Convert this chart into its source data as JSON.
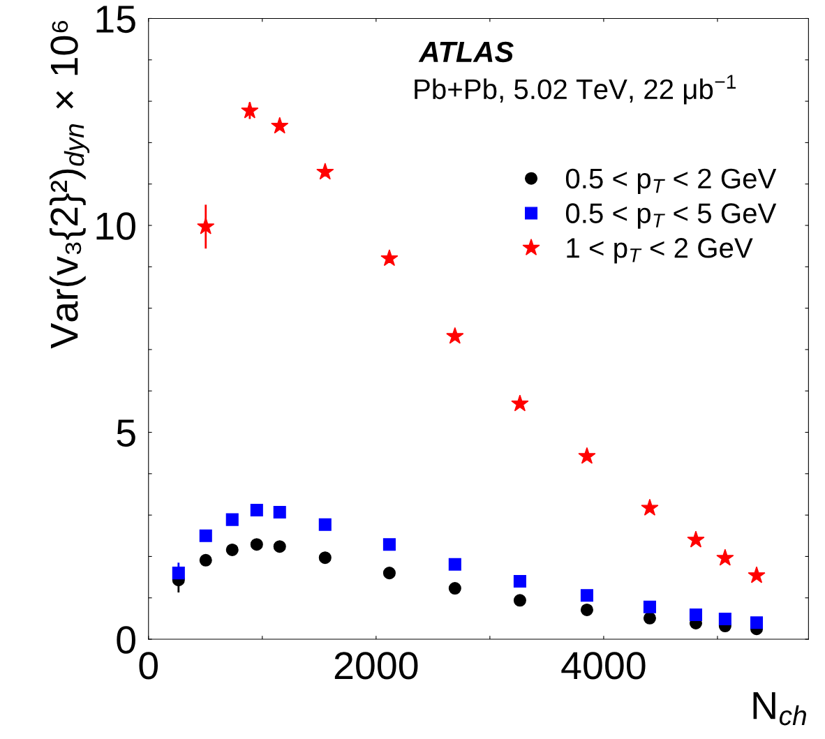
{
  "chart_data": {
    "type": "scatter",
    "xlabel": "N$_{ch}$",
    "ylabel": "Var(v₃{2}²)$_{dyn}$ × 10⁶",
    "annotations": [
      "ATLAS",
      "Pb+Pb, 5.02 TeV, 22 μb$^{−1}$"
    ],
    "xlim": [
      0,
      5800
    ],
    "ylim": [
      0,
      15
    ],
    "xticks": [
      0,
      {
        "value": 1000,
        "label": null
      },
      2000,
      {
        "value": 3000,
        "label": null
      },
      4000,
      {
        "value": 5000,
        "label": null
      }
    ],
    "yticks": [
      0,
      {
        "value": 1,
        "label": null
      },
      {
        "value": 2,
        "label": null
      },
      {
        "value": 3,
        "label": null
      },
      {
        "value": 4,
        "label": null
      },
      5,
      {
        "value": 6,
        "label": null
      },
      {
        "value": 7,
        "label": null
      },
      {
        "value": 8,
        "label": null
      },
      {
        "value": 9,
        "label": null
      },
      10,
      {
        "value": 11,
        "label": null
      },
      {
        "value": 12,
        "label": null
      },
      {
        "value": 13,
        "label": null
      },
      {
        "value": 14,
        "label": null
      },
      15
    ],
    "legend": "top right",
    "grid": false,
    "series": [
      {
        "name": "0.5 < p$_{T}$ < 2 GeV",
        "color": "#000000",
        "marker": "circle",
        "x": [
          264,
          503,
          736,
          951,
          1153,
          1552,
          2117,
          2693,
          3264,
          3853,
          4405,
          4810,
          5067,
          5344
        ],
        "values": [
          1.43,
          1.91,
          2.16,
          2.29,
          2.24,
          1.97,
          1.6,
          1.23,
          0.94,
          0.71,
          0.51,
          0.39,
          0.32,
          0.25
        ],
        "errors": [
          0.3,
          null,
          null,
          null,
          null,
          null,
          null,
          null,
          null,
          null,
          null,
          null,
          null,
          null
        ]
      },
      {
        "name": "0.5 < p$_{T}$ < 5 GeV",
        "color": "#0000ff",
        "marker": "square",
        "x": [
          264,
          503,
          736,
          951,
          1153,
          1552,
          2117,
          2693,
          3264,
          3853,
          4405,
          4810,
          5067,
          5344
        ],
        "values": [
          1.6,
          2.5,
          2.89,
          3.12,
          3.07,
          2.77,
          2.29,
          1.81,
          1.4,
          1.06,
          0.78,
          0.59,
          0.49,
          0.4
        ],
        "errors": [
          0.25,
          null,
          null,
          null,
          null,
          null,
          null,
          null,
          null,
          null,
          null,
          null,
          null,
          null
        ]
      },
      {
        "name": "1 < p$_{T}$ < 2 GeV",
        "color": "#ff0000",
        "marker": "star",
        "x": [
          503,
          890,
          1153,
          1552,
          2117,
          2693,
          3264,
          3853,
          4405,
          4810,
          5067,
          5344
        ],
        "values": [
          9.97,
          12.77,
          12.4,
          11.29,
          9.2,
          7.32,
          5.69,
          4.42,
          3.17,
          2.4,
          1.96,
          1.54
        ],
        "errors": [
          0.53,
          0.2,
          null,
          null,
          null,
          null,
          null,
          null,
          null,
          null,
          null,
          null
        ]
      }
    ]
  }
}
